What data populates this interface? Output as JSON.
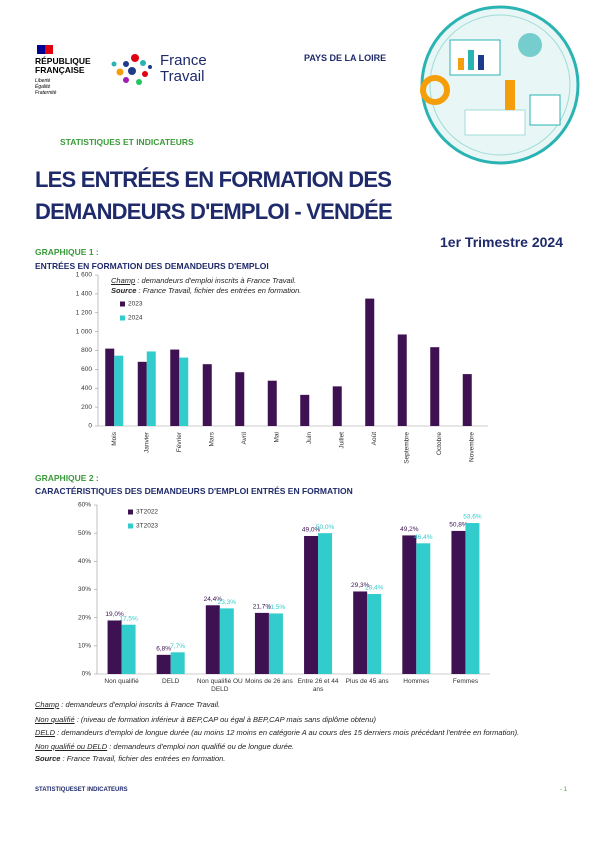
{
  "header": {
    "republic": "RÉPUBLIQUE FRANÇAISE",
    "motto": [
      "Liberté",
      "Égalité",
      "Fraternité"
    ],
    "brand": "France Travail",
    "region": "PAYS DE LA LOIRE",
    "section": "STATISTIQUES ET INDICATEURS"
  },
  "title": "LES ENTRÉES EN FORMATION DES DEMANDEURS D'EMPLOI - VENDÉE",
  "period": "1er Trimestre 2024",
  "chart_data": [
    {
      "type": "bar",
      "label": "GRAPHIQUE 1 :",
      "title": "ENTRÉES EN FORMATION DES DEMANDEURS D'EMPLOI",
      "notes": [
        {
          "label": "Champ",
          "text": " : demandeurs d'emploi inscrits à France Travail."
        },
        {
          "label": "Source",
          "text": " : France Travail, fichier des entrées en formation."
        }
      ],
      "categories": [
        "Mois",
        "Janvier",
        "Février",
        "Mars",
        "Avril",
        "Mai",
        "Juin",
        "Juillet",
        "Août",
        "Septembre",
        "Octobre",
        "Novembre"
      ],
      "series": [
        {
          "name": "2023",
          "color": "#3d1152",
          "values": [
            820,
            680,
            810,
            655,
            570,
            480,
            330,
            420,
            1350,
            970,
            835,
            550
          ]
        },
        {
          "name": "2024",
          "color": "#33cccc",
          "values": [
            745,
            790,
            725,
            null,
            null,
            null,
            null,
            null,
            null,
            null,
            null,
            null
          ]
        }
      ],
      "ylim": [
        0,
        1600
      ],
      "yticks": [
        0,
        200,
        400,
        600,
        800,
        {
          "value": 1000,
          "label": "1 000"
        },
        {
          "value": 1200,
          "label": "1 200"
        },
        {
          "value": 1400,
          "label": "1 400"
        },
        {
          "value": 1600,
          "label": "1 600"
        }
      ],
      "legend": "upper-left"
    },
    {
      "type": "bar",
      "label": "GRAPHIQUE 2 :",
      "title": "CARACTÉRISTIQUES DES DEMANDEURS D'EMPLOI ENTRÉS EN FORMATION",
      "categories": [
        "Non qualifié",
        "DELD",
        "Non qualifié OU DELD",
        "Moins de 26 ans",
        "Entre 26 et 44 ans",
        "Plus de 45 ans",
        "Hommes",
        "Femmes"
      ],
      "series": [
        {
          "name": "3T2022",
          "color": "#3d1152",
          "values": [
            19.0,
            6.8,
            24.4,
            21.7,
            49.0,
            29.3,
            49.2,
            50.8
          ],
          "value_labels": [
            "19,0%",
            "6,8%",
            "24,4%",
            "21,7%",
            "49,0%",
            "29,3%",
            "49,2%",
            "50,8%"
          ]
        },
        {
          "name": "3T2023",
          "color": "#33cccc",
          "values": [
            17.5,
            7.7,
            23.3,
            21.5,
            50.0,
            28.4,
            46.4,
            53.6
          ],
          "value_labels": [
            "17,5%",
            "7,7%",
            "23,3%",
            "21,5%",
            "50,0%",
            "28,4%",
            "46,4%",
            "53,6%"
          ]
        }
      ],
      "ylim": [
        0,
        60
      ],
      "yticks": [
        {
          "value": 0,
          "label": "0%"
        },
        {
          "value": 10,
          "label": "10%"
        },
        {
          "value": 20,
          "label": "20%"
        },
        {
          "value": 30,
          "label": "30%"
        },
        {
          "value": 40,
          "label": "40%"
        },
        {
          "value": 50,
          "label": "50%"
        },
        {
          "value": 60,
          "label": "60%"
        }
      ],
      "legend": "upper-left"
    }
  ],
  "notes": [
    {
      "label": "Champ",
      "text": " : demandeurs d'emploi inscrits à France Travail."
    },
    {
      "label": "Non qualifié",
      "text": " : (niveau de formation inférieur à BEP,CAP ou égal à BEP,CAP mais sans diplôme obtenu)"
    },
    {
      "label": "DELD",
      "text": " : demandeurs d'emploi de longue durée (au moins 12 moins en catégorie A au cours des 15 derniers mois précédant l'entrée en formation)."
    },
    {
      "label": "Non qualifié ou DELD",
      "text": " : demandeurs d'emploi non qualifié ou de longue durée."
    },
    {
      "label": "Source",
      "text": " : France Travail, fichier des entrées en formation."
    }
  ],
  "footer": {
    "left": "STATISTIQUESET INDICATEURS",
    "right": "- 1"
  }
}
